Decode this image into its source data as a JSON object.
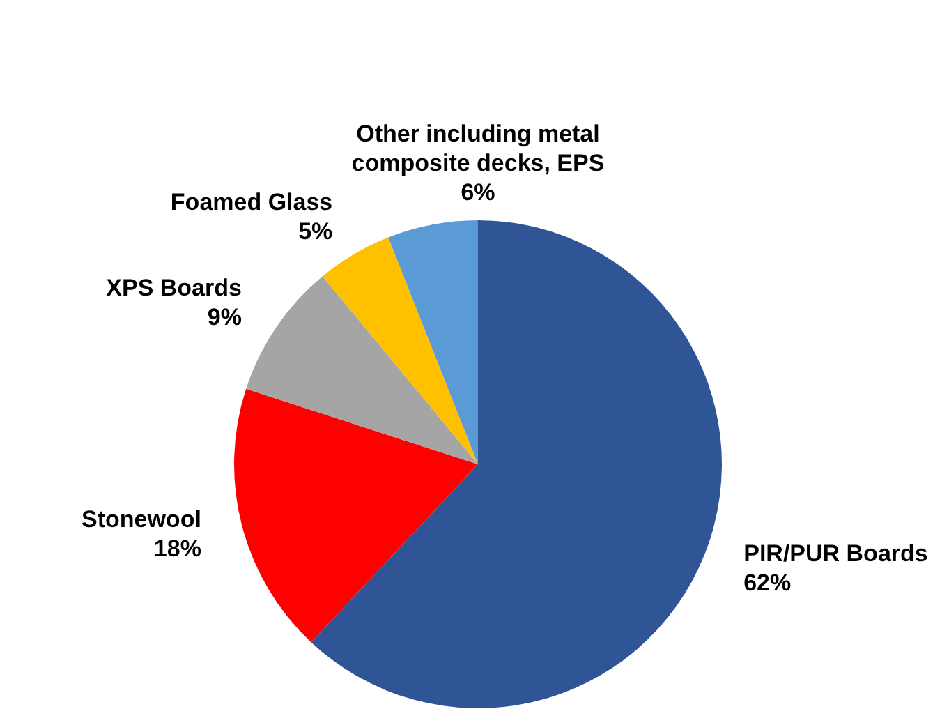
{
  "chart_data": {
    "type": "pie",
    "categories": [
      "PIR/PUR Boards",
      "Stonewool",
      "XPS Boards",
      "Foamed Glass",
      "Other including metal composite decks, EPS"
    ],
    "values": [
      62,
      18,
      9,
      5,
      6
    ],
    "colors": [
      "#2f5597",
      "#ff0000",
      "#a5a5a5",
      "#ffc000",
      "#5b9bd5"
    ],
    "value_labels": [
      "62%",
      "18%",
      "9%",
      "5%",
      "6%"
    ],
    "legend": false
  }
}
